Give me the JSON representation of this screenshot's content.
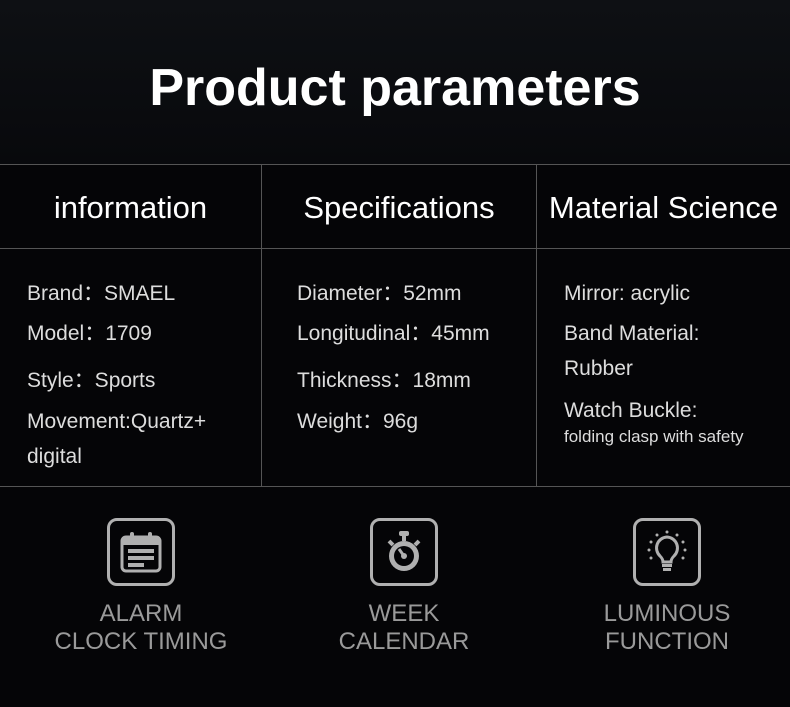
{
  "title": "Product parameters",
  "columns": [
    {
      "header": "information",
      "lines": [
        "Brand：SMAEL",
        "Model：1709",
        "Style：Sports",
        "Movement:Quartz+",
        "digital"
      ]
    },
    {
      "header": "Specifications",
      "lines": [
        "Diameter：52mm",
        "Longitudinal：45mm",
        "Thickness：18mm",
        "Weight：96g"
      ]
    },
    {
      "header": "Material Science",
      "lines": [
        "Mirror: acrylic",
        "Band Material:",
        "Rubber",
        "Watch Buckle:",
        "folding clasp with safety"
      ]
    }
  ],
  "features": [
    {
      "icon": "calendar-icon",
      "line1": "ALARM",
      "line2": "CLOCK TIMING"
    },
    {
      "icon": "stopwatch-icon",
      "line1": "WEEK",
      "line2": "CALENDAR"
    },
    {
      "icon": "lightbulb-icon",
      "line1": "LUMINOUS",
      "line2": "FUNCTION"
    }
  ]
}
